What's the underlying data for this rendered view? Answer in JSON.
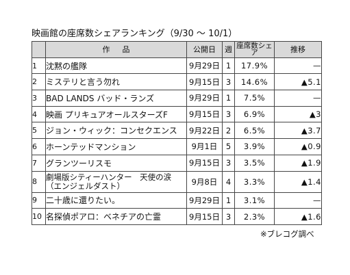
{
  "title": "映画館の座席数シェアランキング（9/30 ～ 10/1）",
  "headers": {
    "title": "作品",
    "release": "公開日",
    "weeks": "週",
    "share": "座席数シェア",
    "change": "推移"
  },
  "rows": [
    {
      "rank": "1",
      "film": "沈黙の艦隊",
      "release": "9月29日",
      "weeks": "1",
      "share": "17.9%",
      "change": "—"
    },
    {
      "rank": "2",
      "film": "ミステリと言う勿れ",
      "release": "9月15日",
      "weeks": "3",
      "share": "14.6%",
      "change": "▲5.1"
    },
    {
      "rank": "3",
      "film": "BAD LANDS バッド・ランズ",
      "release": "9月29日",
      "weeks": "1",
      "share": "7.5%",
      "change": "—"
    },
    {
      "rank": "4",
      "film": "映画 プリキュアオールスターズF",
      "release": "9月15日",
      "weeks": "3",
      "share": "6.9%",
      "change": "▲3"
    },
    {
      "rank": "5",
      "film": "ジョン・ウィック：コンセクエンス",
      "release": "9月22日",
      "weeks": "2",
      "share": "6.5%",
      "change": "▲3.7"
    },
    {
      "rank": "6",
      "film": "ホーンテッドマンション",
      "release": "9月1日",
      "weeks": "5",
      "share": "3.9%",
      "change": "▲0.9"
    },
    {
      "rank": "7",
      "film": "グランツーリスモ",
      "release": "9月15日",
      "weeks": "3",
      "share": "3.5%",
      "change": "▲1.9"
    },
    {
      "rank": "8",
      "film": "劇場版シティーハンター　天使の涙（エンジェルダスト）",
      "release": "9月8日",
      "weeks": "4",
      "share": "3.3%",
      "change": "▲1.4"
    },
    {
      "rank": "9",
      "film": "二十歳に還りたい。",
      "release": "9月29日",
      "weeks": "1",
      "share": "3.1%",
      "change": "—"
    },
    {
      "rank": "10",
      "film": "名探偵ポアロ：ベネチアの亡霊",
      "release": "9月15日",
      "weeks": "3",
      "share": "2.3%",
      "change": "▲1.6"
    }
  ],
  "source": "※ブレコグ調べ"
}
